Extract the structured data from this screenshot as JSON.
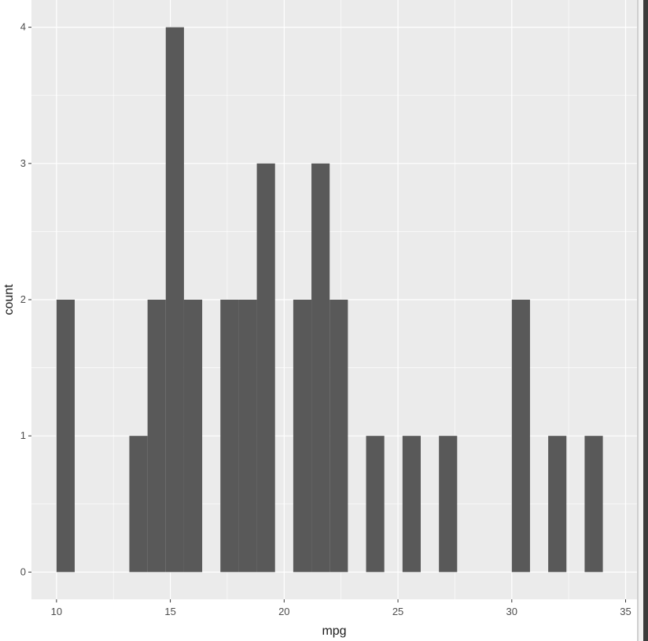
{
  "chart_data": {
    "type": "bar",
    "title": "",
    "xlabel": "mpg",
    "ylabel": "count",
    "xlim": [
      8.9,
      35.5
    ],
    "ylim": [
      -0.2,
      4.2
    ],
    "x_ticks": [
      10,
      15,
      20,
      25,
      30,
      35
    ],
    "y_ticks": [
      0,
      1,
      2,
      3,
      4
    ],
    "grid": true,
    "bin_width": 0.8,
    "bins": [
      {
        "x": 10.4,
        "count": 2
      },
      {
        "x": 13.6,
        "count": 1
      },
      {
        "x": 14.4,
        "count": 2
      },
      {
        "x": 15.2,
        "count": 4
      },
      {
        "x": 16.0,
        "count": 2
      },
      {
        "x": 17.6,
        "count": 2
      },
      {
        "x": 18.4,
        "count": 2
      },
      {
        "x": 19.2,
        "count": 3
      },
      {
        "x": 20.8,
        "count": 2
      },
      {
        "x": 21.6,
        "count": 3
      },
      {
        "x": 22.4,
        "count": 2
      },
      {
        "x": 24.0,
        "count": 1
      },
      {
        "x": 25.6,
        "count": 1
      },
      {
        "x": 27.2,
        "count": 1
      },
      {
        "x": 30.4,
        "count": 2
      },
      {
        "x": 32.0,
        "count": 1
      },
      {
        "x": 33.6,
        "count": 1
      }
    ],
    "colors": {
      "panel": "#ebebeb",
      "grid": "#ffffff",
      "bar": "#595959"
    }
  }
}
